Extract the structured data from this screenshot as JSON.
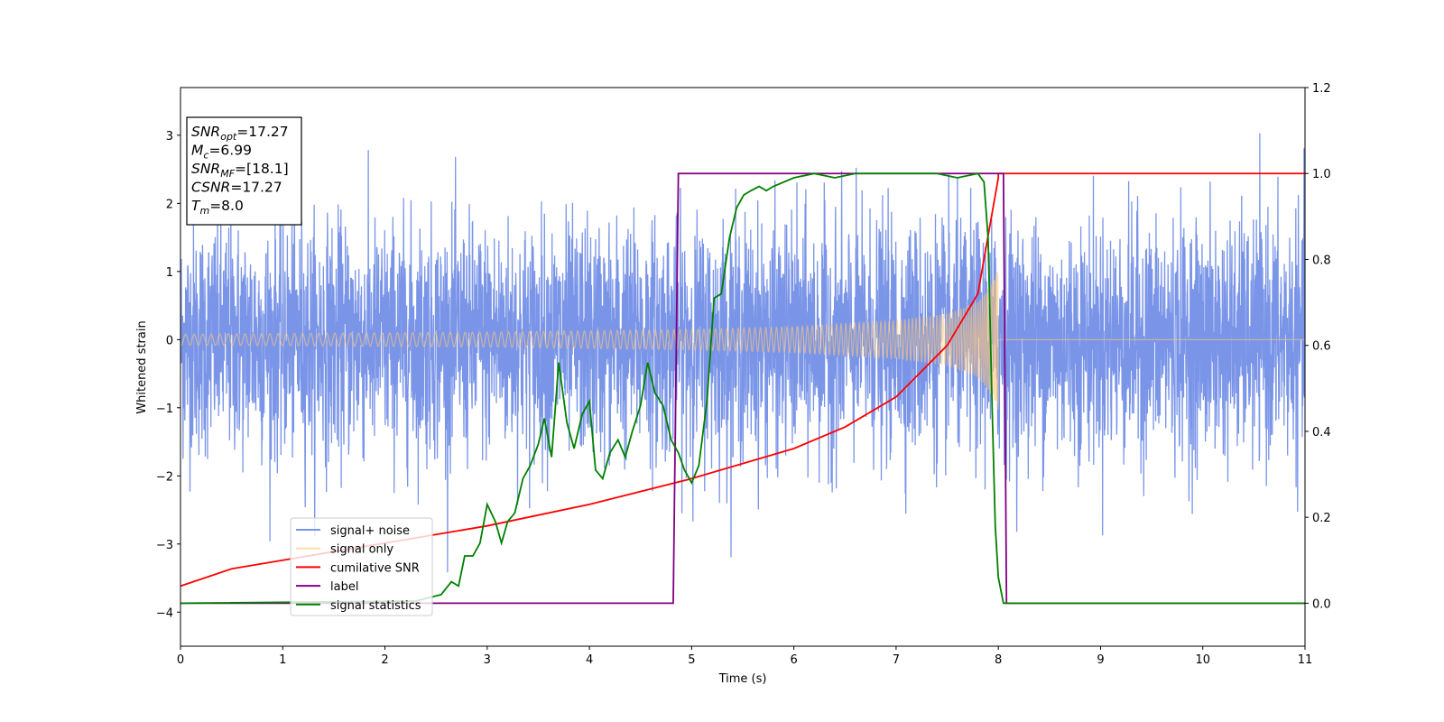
{
  "chart_data": {
    "type": "line",
    "xlabel": "Time (s)",
    "ylabel": "Whitened strain",
    "xlim": [
      0,
      11
    ],
    "ylim_left": [
      -4.5,
      3.7
    ],
    "ylim_right": [
      -0.1,
      1.2
    ],
    "x_ticks": [
      "0",
      "1",
      "2",
      "3",
      "4",
      "5",
      "6",
      "7",
      "8",
      "9",
      "10",
      "11"
    ],
    "y_ticks_left": [
      "3",
      "2",
      "1",
      "0",
      "−1",
      "−2",
      "−3",
      "−4"
    ],
    "y_ticks_right": [
      "0.0",
      "0.2",
      "0.4",
      "0.6",
      "0.8",
      "1.0",
      "1.2"
    ],
    "grid": false,
    "legend_position": "lower-left",
    "series": [
      {
        "name": "signal+ noise",
        "axis": "left",
        "color": "#6b8ae6",
        "description_values": {
          "noise_std": 0.85,
          "typical_range": [
            -2.5,
            2.6
          ],
          "extremes": [
            -4.15,
            3.35
          ]
        }
      },
      {
        "name": "signal only",
        "axis": "left",
        "color": "#ffc878",
        "envelope": {
          "x": [
            0,
            1,
            2,
            3,
            4,
            5,
            6,
            7,
            7.5,
            7.8,
            7.95,
            8.0
          ],
          "amplitude": [
            0.08,
            0.09,
            0.1,
            0.11,
            0.13,
            0.15,
            0.19,
            0.28,
            0.38,
            0.55,
            0.85,
            1.05
          ]
        }
      },
      {
        "name": "cumilative SNR",
        "axis": "right",
        "color": "#ff0000",
        "x": [
          0,
          0.5,
          1,
          2,
          3,
          4,
          5,
          6,
          6.5,
          7,
          7.5,
          7.8,
          8.0,
          8.0,
          11
        ],
        "y": [
          0.04,
          0.08,
          0.1,
          0.14,
          0.18,
          0.23,
          0.29,
          0.36,
          0.41,
          0.48,
          0.6,
          0.72,
          0.99,
          1.0,
          1.0
        ]
      },
      {
        "name": "label",
        "axis": "right",
        "color": "#800080",
        "x": [
          0,
          4.82,
          4.87,
          8.05,
          8.08,
          11
        ],
        "y": [
          0,
          0,
          1,
          1,
          0,
          0
        ]
      },
      {
        "name": "signal statistics",
        "axis": "right",
        "color": "#008000",
        "x": [
          0,
          2.3,
          2.55,
          2.65,
          2.72,
          2.78,
          2.86,
          2.93,
          3.0,
          3.08,
          3.14,
          3.2,
          3.27,
          3.35,
          3.42,
          3.5,
          3.56,
          3.63,
          3.7,
          3.78,
          3.85,
          3.93,
          4.0,
          4.06,
          4.13,
          4.2,
          4.28,
          4.35,
          4.42,
          4.5,
          4.57,
          4.64,
          4.72,
          4.8,
          4.87,
          4.93,
          5.0,
          5.07,
          5.15,
          5.22,
          5.29,
          5.37,
          5.44,
          5.51,
          5.58,
          5.66,
          5.73,
          5.8,
          6.0,
          6.2,
          6.4,
          6.6,
          6.8,
          7.0,
          7.2,
          7.4,
          7.6,
          7.8,
          7.86,
          7.9,
          7.94,
          7.97,
          8.0,
          8.05,
          8.3,
          11
        ],
        "y": [
          0,
          0.005,
          0.02,
          0.05,
          0.04,
          0.11,
          0.11,
          0.14,
          0.23,
          0.19,
          0.14,
          0.19,
          0.21,
          0.29,
          0.32,
          0.37,
          0.43,
          0.34,
          0.56,
          0.42,
          0.36,
          0.44,
          0.47,
          0.31,
          0.29,
          0.35,
          0.38,
          0.34,
          0.4,
          0.46,
          0.56,
          0.49,
          0.46,
          0.38,
          0.35,
          0.31,
          0.28,
          0.32,
          0.47,
          0.71,
          0.72,
          0.85,
          0.92,
          0.95,
          0.96,
          0.97,
          0.96,
          0.97,
          0.99,
          1.0,
          0.99,
          1.0,
          1.0,
          1.0,
          1.0,
          1.0,
          0.99,
          1.0,
          0.98,
          0.85,
          0.45,
          0.18,
          0.06,
          0.0,
          0.0,
          0.0
        ]
      }
    ],
    "annotations": [
      {
        "base": "SNR",
        "sub": "opt",
        "value": "=17.27"
      },
      {
        "base": "M",
        "sub": "c",
        "value": "=6.99"
      },
      {
        "base": "SNR",
        "sub": "MF",
        "value": "=[18.1]"
      },
      {
        "base": "CSNR",
        "sub": "",
        "value": "=17.27"
      },
      {
        "base": "T",
        "sub": "m",
        "value": "=8.0"
      }
    ]
  }
}
